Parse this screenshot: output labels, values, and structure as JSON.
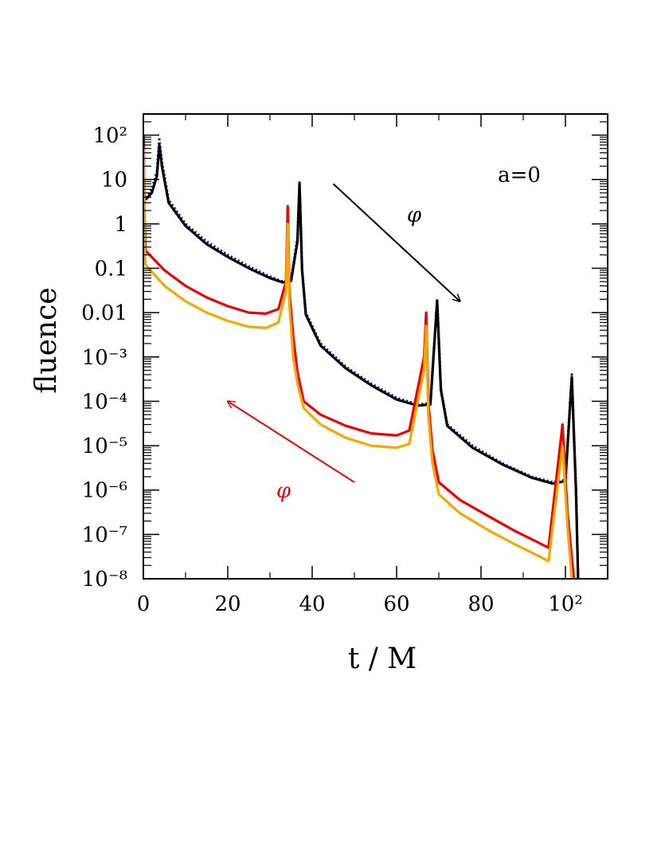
{
  "chart_data": {
    "type": "scatter",
    "title": "",
    "xlabel": "t / M",
    "ylabel": "fluence",
    "xlim": [
      0,
      110
    ],
    "ylim": [
      1e-08,
      300
    ],
    "yscale": "log",
    "grid": false,
    "x_ticks": [
      0,
      20,
      40,
      60,
      80,
      100
    ],
    "x_tick_labels": [
      "0",
      "20",
      "40",
      "60",
      "80",
      "10²"
    ],
    "y_ticks": [
      1e-08,
      1e-07,
      1e-06,
      1e-05,
      0.0001,
      0.001,
      0.01,
      0.1,
      1,
      10,
      100
    ],
    "y_tick_labels": [
      "10⁻⁸",
      "10⁻⁷",
      "10⁻⁶",
      "10⁻⁵",
      "10⁻⁴",
      "10⁻³",
      "0.01",
      "0.1",
      "1",
      "10",
      "10²"
    ],
    "annotations": [
      {
        "text": "a=0",
        "color": "#000000"
      },
      {
        "text": "φ",
        "color": "#000000",
        "arrow_from": [
          45,
          8
        ],
        "arrow_to": [
          75,
          0.018
        ]
      },
      {
        "text": "φ",
        "color": "#ee0000",
        "arrow_from": [
          50,
          1.5e-06
        ],
        "arrow_to": [
          20,
          0.0001
        ]
      }
    ],
    "series": [
      {
        "color": "#0000cc",
        "points": [
          [
            0.5,
            4
          ],
          [
            2,
            6
          ],
          [
            3.2,
            15
          ],
          [
            3.8,
            80
          ],
          [
            4.4,
            25
          ],
          [
            6,
            3.5
          ],
          [
            10,
            1
          ],
          [
            15,
            0.4
          ],
          [
            20,
            0.2
          ],
          [
            25,
            0.11
          ],
          [
            30,
            0.065
          ],
          [
            33,
            0.05
          ],
          [
            35,
            0.055
          ],
          [
            36.5,
            0.5
          ],
          [
            37,
            9
          ],
          [
            37.6,
            0.1
          ],
          [
            38.5,
            0.01
          ],
          [
            42,
            0.002
          ],
          [
            48,
            0.0006
          ],
          [
            54,
            0.00025
          ],
          [
            60,
            0.00012
          ],
          [
            65,
            8.5e-05
          ],
          [
            68,
            9e-05
          ],
          [
            69.6,
            0.02
          ],
          [
            70.5,
            0.0002
          ],
          [
            72,
            3e-05
          ],
          [
            78,
            1e-05
          ],
          [
            85,
            4e-06
          ],
          [
            92,
            2e-06
          ],
          [
            97,
            1.5e-06
          ],
          [
            100,
            1.7e-06
          ],
          [
            101.5,
            0.0004
          ],
          [
            102.5,
            1e-06
          ],
          [
            103,
            1e-08
          ]
        ]
      },
      {
        "color": "#000000",
        "points": [
          [
            0.5,
            3.5
          ],
          [
            2,
            5
          ],
          [
            3.2,
            12
          ],
          [
            3.8,
            60
          ],
          [
            4.4,
            20
          ],
          [
            6,
            3
          ],
          [
            10,
            0.9
          ],
          [
            15,
            0.35
          ],
          [
            20,
            0.18
          ],
          [
            25,
            0.1
          ],
          [
            30,
            0.06
          ],
          [
            33,
            0.048
          ],
          [
            35,
            0.052
          ],
          [
            36.5,
            0.4
          ],
          [
            37,
            8
          ],
          [
            37.6,
            0.09
          ],
          [
            38.5,
            0.009
          ],
          [
            42,
            0.0018
          ],
          [
            48,
            0.00055
          ],
          [
            54,
            0.00023
          ],
          [
            60,
            0.00011
          ],
          [
            65,
            8e-05
          ],
          [
            68,
            8.5e-05
          ],
          [
            69.6,
            0.018
          ],
          [
            70.5,
            0.00018
          ],
          [
            72,
            2.8e-05
          ],
          [
            78,
            9e-06
          ],
          [
            85,
            3.8e-06
          ],
          [
            92,
            1.9e-06
          ],
          [
            97,
            1.4e-06
          ],
          [
            100,
            1.6e-06
          ],
          [
            101.5,
            0.00035
          ],
          [
            102.5,
            9e-07
          ],
          [
            103,
            1e-08
          ]
        ]
      },
      {
        "color": "#ee0000",
        "points": [
          [
            0.1,
            100
          ],
          [
            0.3,
            1
          ],
          [
            0.5,
            0.25
          ],
          [
            5,
            0.09
          ],
          [
            10,
            0.04
          ],
          [
            15,
            0.022
          ],
          [
            20,
            0.014
          ],
          [
            25,
            0.01
          ],
          [
            29,
            0.0095
          ],
          [
            32,
            0.012
          ],
          [
            33.8,
            0.05
          ],
          [
            34.2,
            2.5
          ],
          [
            34.6,
            0.03
          ],
          [
            35.5,
            0.003
          ],
          [
            36.5,
            0.00045
          ],
          [
            38,
            0.0001
          ],
          [
            42,
            5e-05
          ],
          [
            48,
            2.8e-05
          ],
          [
            54,
            1.9e-05
          ],
          [
            60,
            1.7e-05
          ],
          [
            63,
            2.2e-05
          ],
          [
            66.5,
            0.001
          ],
          [
            67,
            0.01
          ],
          [
            67.5,
            0.0001
          ],
          [
            68.5,
            8e-06
          ],
          [
            70,
            1.5e-06
          ],
          [
            75,
            6e-07
          ],
          [
            82,
            2.5e-07
          ],
          [
            88,
            1.2e-07
          ],
          [
            93,
            7e-08
          ],
          [
            96,
            5e-08
          ],
          [
            99.3,
            3e-05
          ],
          [
            100.5,
            3e-07
          ],
          [
            102,
            1e-08
          ]
        ]
      },
      {
        "color": "#f5a800",
        "points": [
          [
            0.1,
            50
          ],
          [
            0.3,
            0.3
          ],
          [
            0.5,
            0.12
          ],
          [
            5,
            0.04
          ],
          [
            10,
            0.018
          ],
          [
            15,
            0.01
          ],
          [
            20,
            0.0065
          ],
          [
            25,
            0.0048
          ],
          [
            29,
            0.0045
          ],
          [
            32,
            0.006
          ],
          [
            33.8,
            0.03
          ],
          [
            34.2,
            1
          ],
          [
            34.6,
            0.015
          ],
          [
            35.5,
            0.001
          ],
          [
            36.5,
            0.00025
          ],
          [
            38,
            7e-05
          ],
          [
            42,
            3e-05
          ],
          [
            48,
            1.5e-05
          ],
          [
            54,
            1e-05
          ],
          [
            60,
            9e-06
          ],
          [
            63,
            1.1e-05
          ],
          [
            66.5,
            0.0005
          ],
          [
            67,
            0.005
          ],
          [
            67.5,
            5e-05
          ],
          [
            68.5,
            4e-06
          ],
          [
            70,
            8e-07
          ],
          [
            75,
            3e-07
          ],
          [
            82,
            1.2e-07
          ],
          [
            88,
            6e-08
          ],
          [
            93,
            3.5e-08
          ],
          [
            96,
            2.5e-08
          ],
          [
            99.3,
            1e-05
          ],
          [
            100.5,
            1.5e-07
          ],
          [
            101.5,
            1e-08
          ]
        ]
      }
    ]
  }
}
